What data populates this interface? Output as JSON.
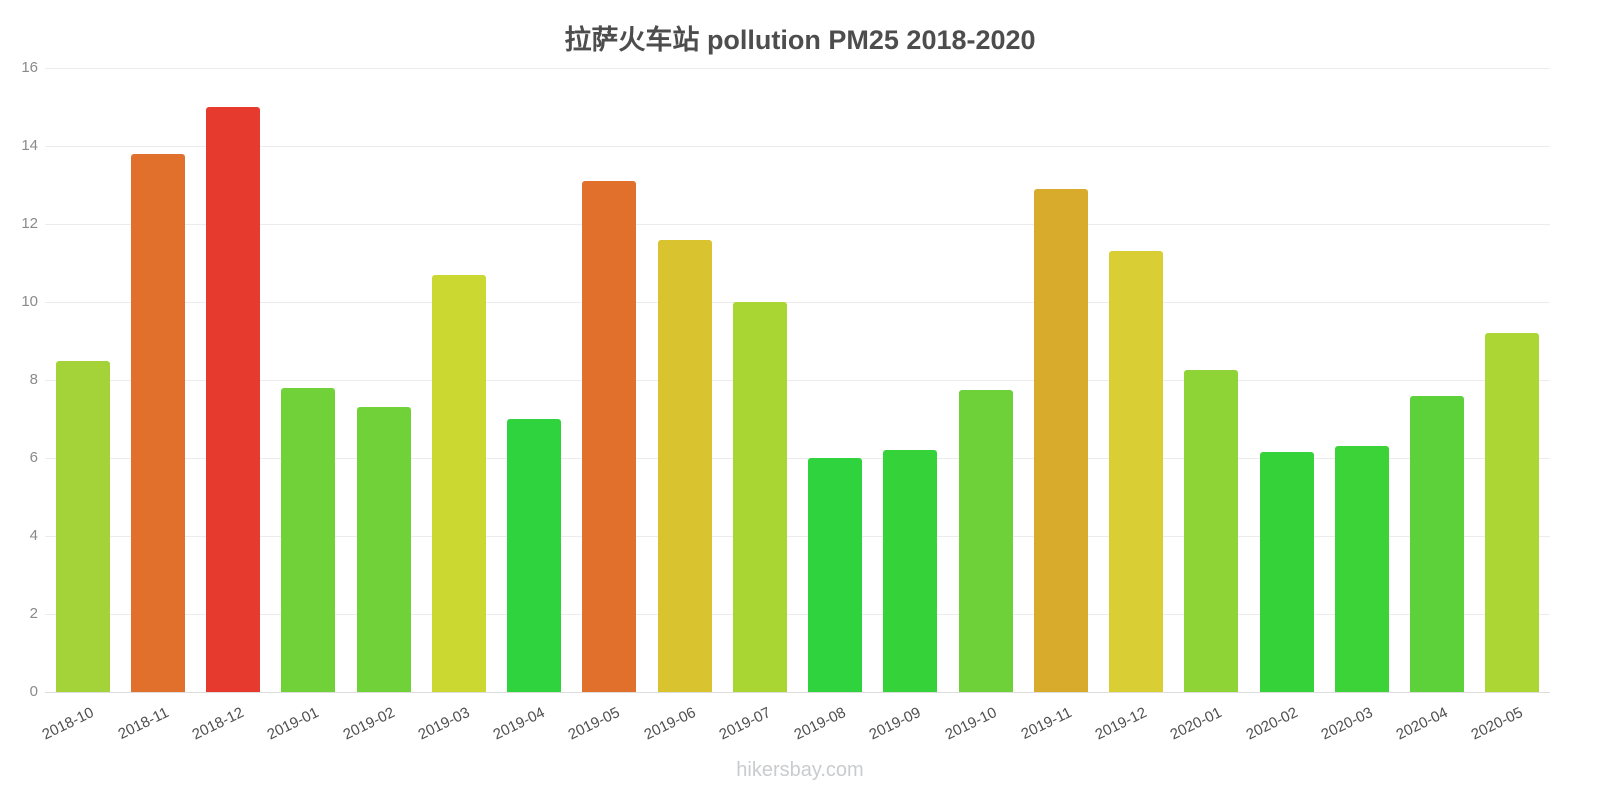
{
  "title": "拉萨火车站 pollution PM25 2018-2020",
  "footer": "hikersbay.com",
  "chart_data": {
    "type": "bar",
    "title": "拉萨火车站 pollution PM25 2018-2020",
    "xlabel": "",
    "ylabel": "",
    "ylim": [
      0,
      16
    ],
    "yticks": [
      0,
      2,
      4,
      6,
      8,
      10,
      12,
      14,
      16
    ],
    "grid": true,
    "legend": "none",
    "categories": [
      "2018-10",
      "2018-11",
      "2018-12",
      "2019-01",
      "2019-02",
      "2019-03",
      "2019-04",
      "2019-05",
      "2019-06",
      "2019-07",
      "2019-08",
      "2019-09",
      "2019-10",
      "2019-11",
      "2019-12",
      "2020-01",
      "2020-02",
      "2020-03",
      "2020-04",
      "2020-05"
    ],
    "values": [
      8.5,
      13.8,
      15.0,
      7.8,
      7.3,
      10.7,
      7.0,
      13.1,
      11.6,
      10.0,
      6.0,
      6.2,
      7.75,
      12.9,
      11.3,
      8.25,
      6.15,
      6.3,
      7.6,
      9.2
    ],
    "colors": [
      "#a3d339",
      "#e1702d",
      "#e63a2e",
      "#71d139",
      "#71d139",
      "#cbd832",
      "#2fd33d",
      "#e1702d",
      "#d9c32f",
      "#aad634",
      "#2fd33d",
      "#36d23a",
      "#6ed139",
      "#d8ab2d",
      "#d9ce33",
      "#8fd437",
      "#36d23a",
      "#3bd338",
      "#5cd13a",
      "#abd634"
    ]
  }
}
